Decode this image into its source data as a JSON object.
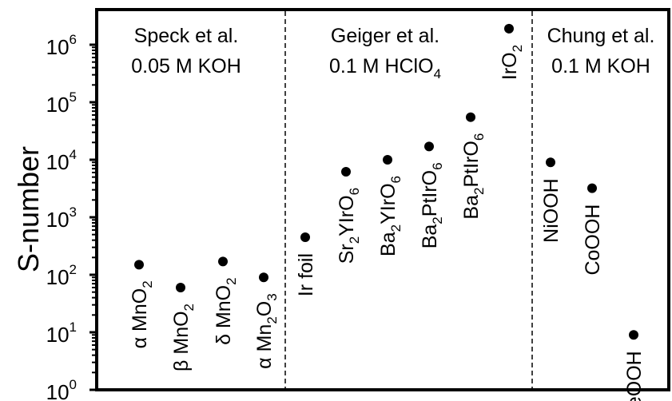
{
  "chart_data": {
    "type": "scatter",
    "ylabel": "S-number",
    "y_scale": "log",
    "ylim_exponent": [
      0,
      6.5
    ],
    "y_ticks": [
      {
        "base": "10",
        "exp": "0"
      },
      {
        "base": "10",
        "exp": "1"
      },
      {
        "base": "10",
        "exp": "2"
      },
      {
        "base": "10",
        "exp": "3"
      },
      {
        "base": "10",
        "exp": "4"
      },
      {
        "base": "10",
        "exp": "5"
      },
      {
        "base": "10",
        "exp": "6"
      }
    ],
    "groups": [
      {
        "line1": "Speck et al.",
        "line2": "0.05 M KOH"
      },
      {
        "line1": "Geiger et al.",
        "line2": "0.1 M HClO",
        "line2_sub": "4"
      },
      {
        "line1": "Chung et al.",
        "line2": "0.1 M KOH"
      }
    ],
    "points": [
      {
        "parts": [
          {
            "t": "α MnO"
          },
          {
            "t": "2",
            "s": true
          }
        ],
        "value": 150,
        "group": 0
      },
      {
        "parts": [
          {
            "t": "β MnO"
          },
          {
            "t": "2",
            "s": true
          }
        ],
        "value": 60,
        "group": 0
      },
      {
        "parts": [
          {
            "t": "δ MnO"
          },
          {
            "t": "2",
            "s": true
          }
        ],
        "value": 170,
        "group": 0
      },
      {
        "parts": [
          {
            "t": "α Mn"
          },
          {
            "t": "2",
            "s": true
          },
          {
            "t": "O"
          },
          {
            "t": "3",
            "s": true
          }
        ],
        "value": 90,
        "group": 0
      },
      {
        "parts": [
          {
            "t": "Ir foil"
          }
        ],
        "value": 450,
        "group": 1
      },
      {
        "parts": [
          {
            "t": "Sr"
          },
          {
            "t": "2",
            "s": true
          },
          {
            "t": "YIrO"
          },
          {
            "t": "6",
            "s": true
          }
        ],
        "value": 6200,
        "group": 1
      },
      {
        "parts": [
          {
            "t": "Ba"
          },
          {
            "t": "2",
            "s": true
          },
          {
            "t": "YIrO"
          },
          {
            "t": "6",
            "s": true
          }
        ],
        "value": 10000,
        "group": 1
      },
      {
        "parts": [
          {
            "t": "Ba"
          },
          {
            "t": "2",
            "s": true
          },
          {
            "t": "PtIrO"
          },
          {
            "t": "6",
            "s": true
          }
        ],
        "value": 17000,
        "group": 1
      },
      {
        "parts": [
          {
            "t": "Ba"
          },
          {
            "t": "2",
            "s": true
          },
          {
            "t": "PtIrO"
          },
          {
            "t": "6",
            "s": true
          }
        ],
        "value": 55000,
        "group": 1
      },
      {
        "parts": [
          {
            "t": "IrO"
          },
          {
            "t": "2",
            "s": true
          }
        ],
        "value": 1900000,
        "group": 1
      },
      {
        "parts": [
          {
            "t": "NiOOH"
          }
        ],
        "value": 9000,
        "group": 2
      },
      {
        "parts": [
          {
            "t": "CoOOH"
          }
        ],
        "value": 3200,
        "group": 2
      },
      {
        "parts": [
          {
            "t": "FeOOH"
          }
        ],
        "value": 9,
        "group": 2
      }
    ]
  }
}
